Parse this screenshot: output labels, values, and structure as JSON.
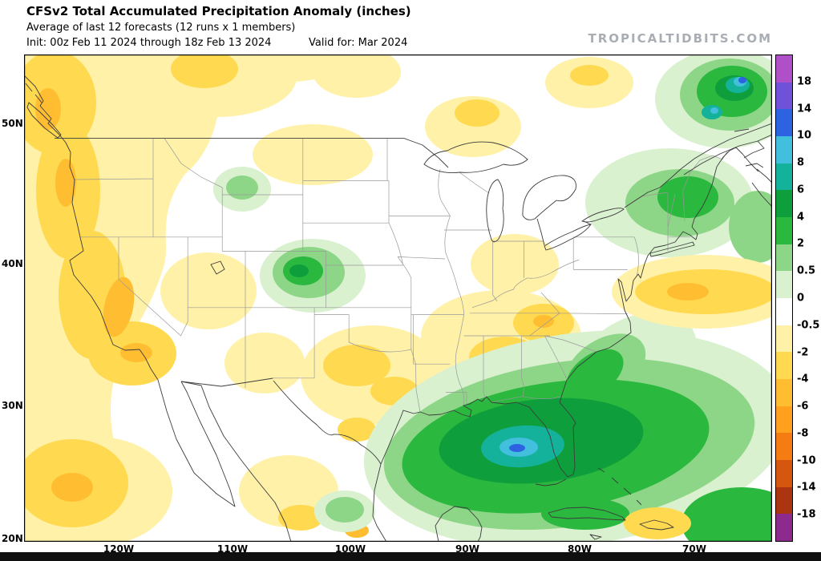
{
  "header": {
    "title": "CFSv2 Total Accumulated Precipitation Anomaly (inches)",
    "subtitle": "Average of last 12 forecasts (12 runs x 1 members)",
    "init_line": "Init: 00z Feb 11 2024 through 18z Feb 13 2024",
    "valid_line": "Valid for: Mar 2024",
    "watermark": "TROPICALTIDBITS.COM"
  },
  "axes": {
    "lat_labels": [
      "50N",
      "40N",
      "30N",
      "20N"
    ],
    "lon_labels": [
      "120W",
      "110W",
      "100W",
      "90W",
      "80W",
      "70W"
    ]
  },
  "colorbar": {
    "units": "inches",
    "labels": [
      "18",
      "14",
      "10",
      "8",
      "6",
      "4",
      "2",
      "0.5",
      "0",
      "-0.5",
      "-2",
      "-4",
      "-6",
      "-8",
      "-10",
      "-14",
      "-18"
    ],
    "colors": [
      "#b050c8",
      "#6f52d8",
      "#2d62e0",
      "#41bfdd",
      "#14b29b",
      "#0f9e3c",
      "#2ab83e",
      "#8ed687",
      "#d9f1cf",
      "#ffffff",
      "#fff1a8",
      "#ffd94f",
      "#ffbe32",
      "#ffa01e",
      "#f57c12",
      "#d4560f",
      "#aa3510",
      "#8d2a8d"
    ]
  }
}
